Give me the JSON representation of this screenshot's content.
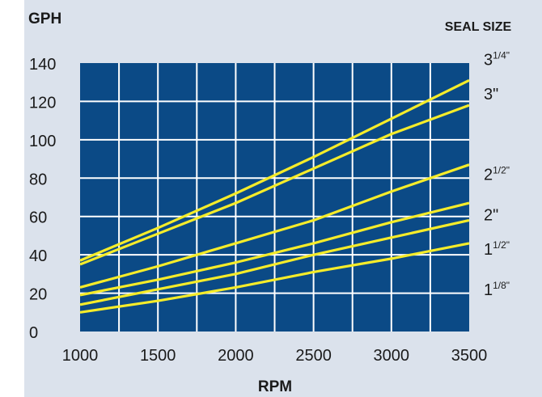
{
  "chart_data": {
    "type": "line",
    "ylabel": "GPH",
    "xlabel": "RPM",
    "legend_title": "SEAL SIZE",
    "xlim": [
      1000,
      3500
    ],
    "ylim": [
      0,
      140
    ],
    "x_ticks": [
      "1000",
      "1500",
      "2000",
      "2500",
      "3000",
      "3500"
    ],
    "y_ticks": [
      "0",
      "20",
      "40",
      "60",
      "80",
      "100",
      "120",
      "140"
    ],
    "grid": true,
    "colors": {
      "plot_bg": "#0b4a86",
      "grid": "#ffffff",
      "line": "#f5ec2a",
      "panel": "#dbe2ec"
    },
    "series": [
      {
        "name": "3",
        "sup": "1/4\"",
        "label_y": 142,
        "x": [
          1000,
          1500,
          2000,
          2500,
          3000,
          3500
        ],
        "values": [
          37,
          54,
          72,
          91,
          111,
          131
        ]
      },
      {
        "name": "3\"",
        "sup": "",
        "label_y": 124,
        "x": [
          1000,
          1500,
          2000,
          2500,
          3000,
          3500
        ],
        "values": [
          35,
          51,
          67,
          85,
          103,
          118
        ]
      },
      {
        "name": "2",
        "sup": "1/2\"",
        "label_y": 82,
        "x": [
          1000,
          1500,
          2000,
          2500,
          3000,
          3500
        ],
        "values": [
          23,
          34,
          46,
          58,
          73,
          87
        ]
      },
      {
        "name": "2\"",
        "sup": "",
        "label_y": 61,
        "x": [
          1000,
          1500,
          2000,
          2500,
          3000,
          3500
        ],
        "values": [
          19,
          27,
          36,
          46,
          57,
          67
        ]
      },
      {
        "name": "1",
        "sup": "1/2\"",
        "label_y": 43,
        "x": [
          1000,
          1500,
          2000,
          2500,
          3000,
          3500
        ],
        "values": [
          14,
          22,
          30,
          40,
          49,
          58
        ]
      },
      {
        "name": "1",
        "sup": "1/8\"",
        "label_y": 22,
        "x": [
          1000,
          1500,
          2000,
          2500,
          3000,
          3500
        ],
        "values": [
          10,
          16,
          23,
          31,
          38,
          46
        ]
      }
    ]
  }
}
